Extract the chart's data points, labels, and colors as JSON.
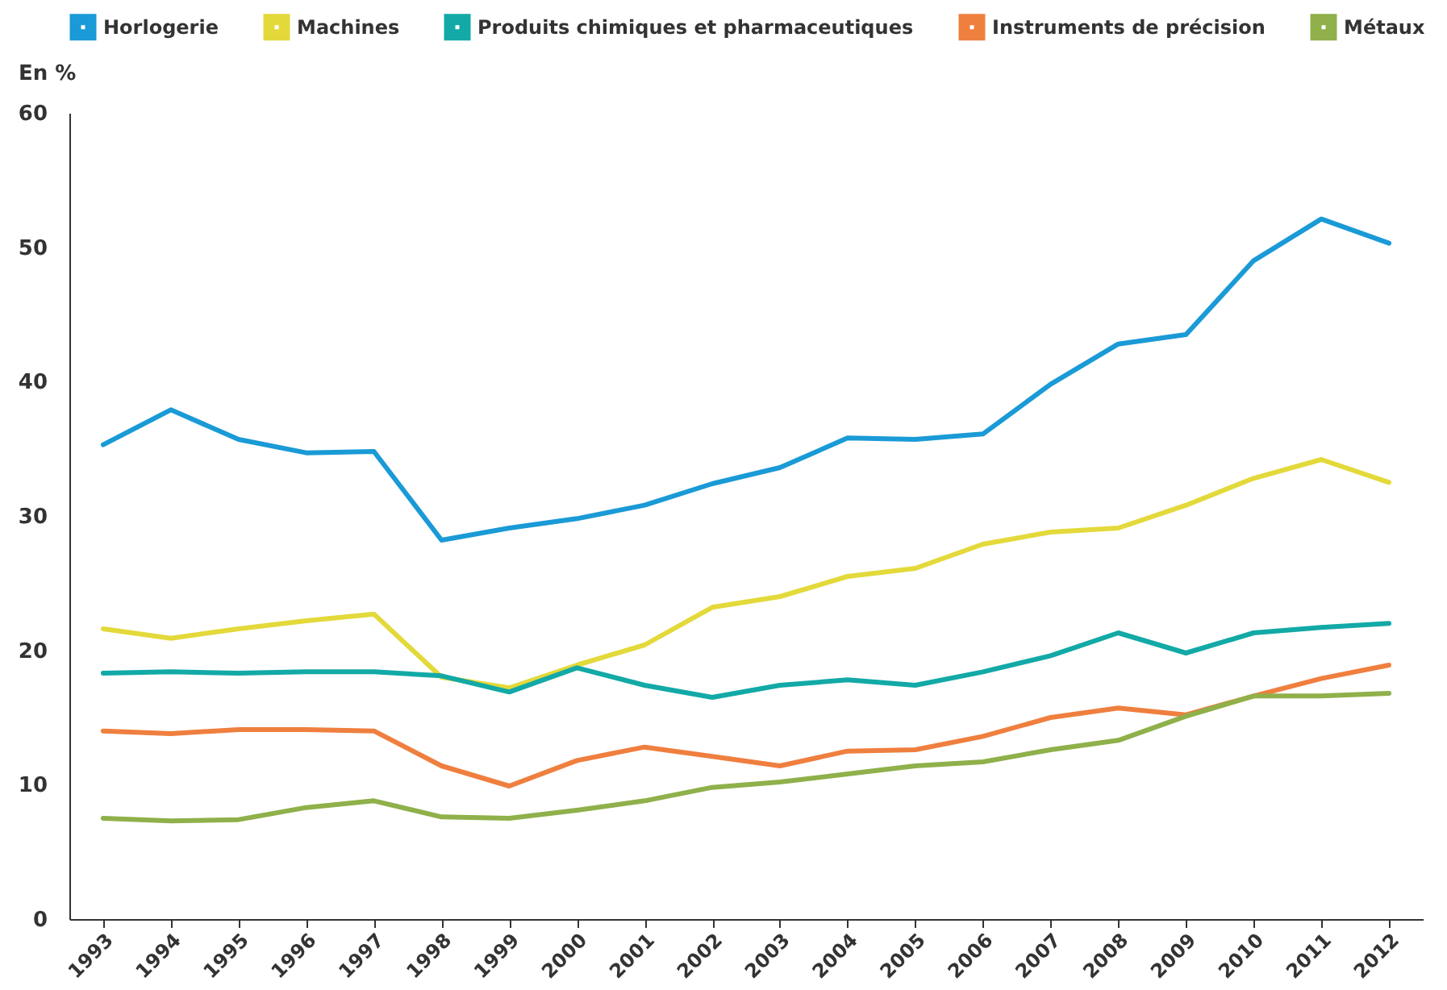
{
  "chart_data": {
    "type": "line",
    "ylabel": "En %",
    "categories": [
      "1993",
      "1994",
      "1995",
      "1996",
      "1997",
      "1998",
      "1999",
      "2000",
      "2001",
      "2002",
      "2003",
      "2004",
      "2005",
      "2006",
      "2007",
      "2008",
      "2009",
      "2010",
      "2011",
      "2012"
    ],
    "series": [
      {
        "name": "Horlogerie",
        "color": "#1a9ad6",
        "values": [
          35.3,
          37.9,
          35.7,
          34.7,
          34.8,
          28.2,
          29.1,
          29.8,
          30.8,
          32.4,
          33.6,
          35.8,
          35.7,
          36.1,
          39.8,
          42.8,
          43.5,
          49.0,
          52.1,
          50.3
        ]
      },
      {
        "name": "Machines",
        "color": "#e3d93a",
        "values": [
          21.6,
          20.9,
          21.6,
          22.2,
          22.7,
          18.0,
          17.2,
          18.9,
          20.4,
          23.2,
          24.0,
          25.5,
          26.1,
          27.9,
          28.8,
          29.1,
          30.8,
          32.8,
          34.2,
          32.5
        ]
      },
      {
        "name": "Produits chimiques et pharmaceutiques",
        "color": "#12a9a6",
        "values": [
          18.3,
          18.4,
          18.3,
          18.4,
          18.4,
          18.1,
          16.9,
          18.7,
          17.4,
          16.5,
          17.4,
          17.8,
          17.4,
          18.4,
          19.6,
          21.3,
          19.8,
          21.3,
          21.7,
          22.0
        ]
      },
      {
        "name": "Instruments de précision",
        "color": "#ef7f3f",
        "values": [
          14.0,
          13.8,
          14.1,
          14.1,
          14.0,
          11.4,
          9.9,
          11.8,
          12.8,
          12.1,
          11.4,
          12.5,
          12.6,
          13.6,
          15.0,
          15.7,
          15.2,
          16.6,
          17.9,
          18.9
        ]
      },
      {
        "name": "Métaux",
        "color": "#8fb04a",
        "values": [
          7.5,
          7.3,
          7.4,
          8.3,
          8.8,
          7.6,
          7.5,
          8.1,
          8.8,
          9.8,
          10.2,
          10.8,
          11.4,
          11.7,
          12.6,
          13.3,
          15.1,
          16.6,
          16.6,
          16.8
        ]
      }
    ],
    "ylim": [
      0,
      60
    ],
    "yticks": [
      0,
      10,
      20,
      30,
      40,
      50,
      60
    ],
    "legend": "top",
    "grid": false,
    "marker": "none",
    "line_style": "solid"
  }
}
